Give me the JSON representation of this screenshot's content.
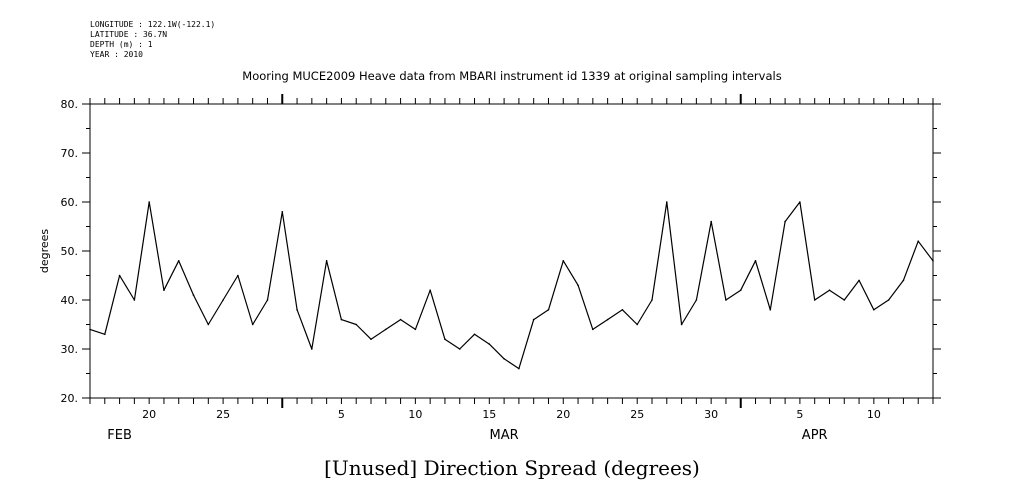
{
  "header": {
    "lines": [
      "LONGITUDE : 122.1W(-122.1)",
      "LATITUDE : 36.7N",
      "DEPTH (m) : 1",
      "YEAR : 2010"
    ]
  },
  "chart_data": {
    "type": "line",
    "title": "Mooring MUCE2009 Heave data from MBARI instrument id 1339 at original sampling intervals",
    "ylabel": "degrees",
    "bottom_title": "[Unused] Direction Spread (degrees)",
    "ylim": [
      20,
      80
    ],
    "yticks": [
      20,
      30,
      40,
      50,
      60,
      70,
      80
    ],
    "ytick_labels": [
      "20.",
      "30.",
      "40.",
      "50.",
      "60.",
      "70.",
      "80."
    ],
    "x_start": "2010-02-16",
    "x_end": "2010-04-14",
    "xtick_labels": [
      {
        "date": "2010-02-20",
        "label": "20"
      },
      {
        "date": "2010-02-25",
        "label": "25"
      },
      {
        "date": "2010-03-05",
        "label": "5"
      },
      {
        "date": "2010-03-10",
        "label": "10"
      },
      {
        "date": "2010-03-15",
        "label": "15"
      },
      {
        "date": "2010-03-20",
        "label": "20"
      },
      {
        "date": "2010-03-25",
        "label": "25"
      },
      {
        "date": "2010-03-30",
        "label": "30"
      },
      {
        "date": "2010-04-05",
        "label": "5"
      },
      {
        "date": "2010-04-10",
        "label": "10"
      }
    ],
    "month_labels": [
      {
        "date": "2010-02-18",
        "label": "FEB"
      },
      {
        "date": "2010-03-16",
        "label": "MAR"
      },
      {
        "date": "2010-04-06",
        "label": "APR"
      }
    ],
    "series": [
      {
        "x": [
          "2010-02-16",
          "2010-02-17",
          "2010-02-18",
          "2010-02-19",
          "2010-02-20",
          "2010-02-21",
          "2010-02-22",
          "2010-02-23",
          "2010-02-24",
          "2010-02-25",
          "2010-02-26",
          "2010-02-27",
          "2010-02-28",
          "2010-03-01",
          "2010-03-02",
          "2010-03-03",
          "2010-03-04",
          "2010-03-05",
          "2010-03-06",
          "2010-03-07",
          "2010-03-08",
          "2010-03-09",
          "2010-03-10",
          "2010-03-11",
          "2010-03-12",
          "2010-03-13",
          "2010-03-14",
          "2010-03-15",
          "2010-03-16",
          "2010-03-17",
          "2010-03-18",
          "2010-03-19",
          "2010-03-20",
          "2010-03-21",
          "2010-03-22",
          "2010-03-23",
          "2010-03-24",
          "2010-03-25",
          "2010-03-26",
          "2010-03-27",
          "2010-03-28",
          "2010-03-29",
          "2010-03-30",
          "2010-03-31",
          "2010-04-01",
          "2010-04-02",
          "2010-04-03",
          "2010-04-04",
          "2010-04-05",
          "2010-04-06",
          "2010-04-07",
          "2010-04-08",
          "2010-04-09",
          "2010-04-10",
          "2010-04-11",
          "2010-04-12",
          "2010-04-13",
          "2010-04-14"
        ],
        "y": [
          34,
          33,
          45,
          40,
          60,
          42,
          48,
          41,
          35,
          40,
          45,
          35,
          40,
          58,
          38,
          30,
          48,
          36,
          35,
          32,
          34,
          36,
          34,
          42,
          32,
          30,
          33,
          31,
          28,
          26,
          36,
          38,
          48,
          43,
          34,
          36,
          38,
          35,
          40,
          60,
          35,
          40,
          56,
          40,
          42,
          48,
          38,
          56,
          60,
          40,
          42,
          40,
          44,
          38,
          40,
          44,
          52,
          48
        ]
      }
    ],
    "grid": false
  }
}
